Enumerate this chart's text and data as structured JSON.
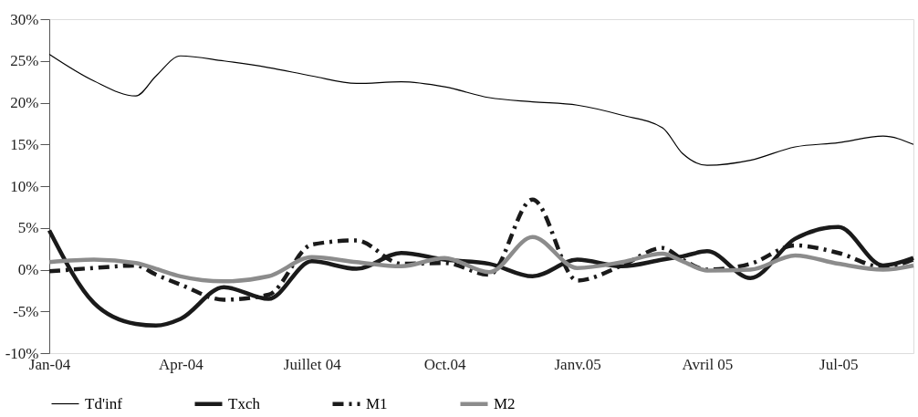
{
  "chart_data": {
    "type": "line",
    "x": [
      "2004-01",
      "2004-02",
      "2004-03",
      "2004-03-15",
      "2004-04",
      "2004-05",
      "2004-06",
      "2004-07",
      "2004-08",
      "2004-09",
      "2004-10",
      "2004-11",
      "2004-12",
      "2005-01",
      "2005-02",
      "2005-03",
      "2005-03-15",
      "2005-04",
      "2005-05",
      "2005-06",
      "2005-07",
      "2005-08",
      "2005-08-22"
    ],
    "series": [
      {
        "name": "Td'inf",
        "color": "#000000",
        "line_style": "solid",
        "values": [
          25.8,
          22.6,
          20.8,
          23.2,
          25.6,
          25.0,
          24.2,
          23.2,
          22.3,
          22.5,
          21.9,
          20.6,
          20.1,
          19.7,
          18.5,
          17.0,
          13.9,
          12.5,
          13.1,
          14.7,
          15.2,
          16.0,
          15.0
        ]
      },
      {
        "name": "Txch",
        "color": "#1a1a1a",
        "line_style": "solid",
        "values": [
          4.7,
          -4.0,
          -6.5,
          -6.7,
          -5.9,
          -2.1,
          -3.5,
          1.0,
          0.1,
          2.0,
          1.2,
          0.7,
          -0.8,
          1.2,
          0.4,
          1.2,
          1.6,
          2.2,
          -1.0,
          3.7,
          5.1,
          0.5,
          1.4
        ]
      },
      {
        "name": "M1",
        "color": "#1a1a1a",
        "line_style": "dashed",
        "values": [
          -0.2,
          0.2,
          0.5,
          -0.6,
          -1.8,
          -3.6,
          -3.0,
          3.0,
          3.5,
          0.7,
          0.8,
          -0.6,
          8.4,
          -1.3,
          0.5,
          2.6,
          1.2,
          0.0,
          0.7,
          2.9,
          2.0,
          0.3,
          1.2
        ]
      },
      {
        "name": "M2",
        "color": "#8c8c8c",
        "line_style": "solid",
        "values": [
          0.9,
          1.2,
          0.8,
          0.1,
          -0.8,
          -1.4,
          -0.8,
          1.5,
          0.9,
          0.4,
          1.4,
          -0.3,
          3.9,
          0.2,
          0.9,
          1.9,
          1.0,
          -0.1,
          0.0,
          1.7,
          0.7,
          0.0,
          0.5
        ]
      }
    ],
    "xlim": [
      "2004-01",
      "2005-08-22"
    ],
    "xticks": [
      {
        "value": "2004-01",
        "label": "Jan-04"
      },
      {
        "value": "2004-04",
        "label": "Apr-04"
      },
      {
        "value": "2004-07",
        "label": "Juillet 04"
      },
      {
        "value": "2004-10",
        "label": "Oct.04"
      },
      {
        "value": "2005-01",
        "label": "Janv.05"
      },
      {
        "value": "2005-04",
        "label": "Avril 05"
      },
      {
        "value": "2005-07",
        "label": "Jul-05"
      }
    ],
    "ylim": [
      -10,
      30
    ],
    "yticks": [
      {
        "value": -10,
        "label": "-10%"
      },
      {
        "value": -5,
        "label": "-5%"
      },
      {
        "value": 0,
        "label": "0%"
      },
      {
        "value": 5,
        "label": "5%"
      },
      {
        "value": 10,
        "label": "10%"
      },
      {
        "value": 15,
        "label": "15%"
      },
      {
        "value": 20,
        "label": "20%"
      },
      {
        "value": 25,
        "label": "25%"
      },
      {
        "value": 30,
        "label": "30%"
      }
    ],
    "grid": false,
    "legend": "bottom",
    "marker": "none"
  }
}
